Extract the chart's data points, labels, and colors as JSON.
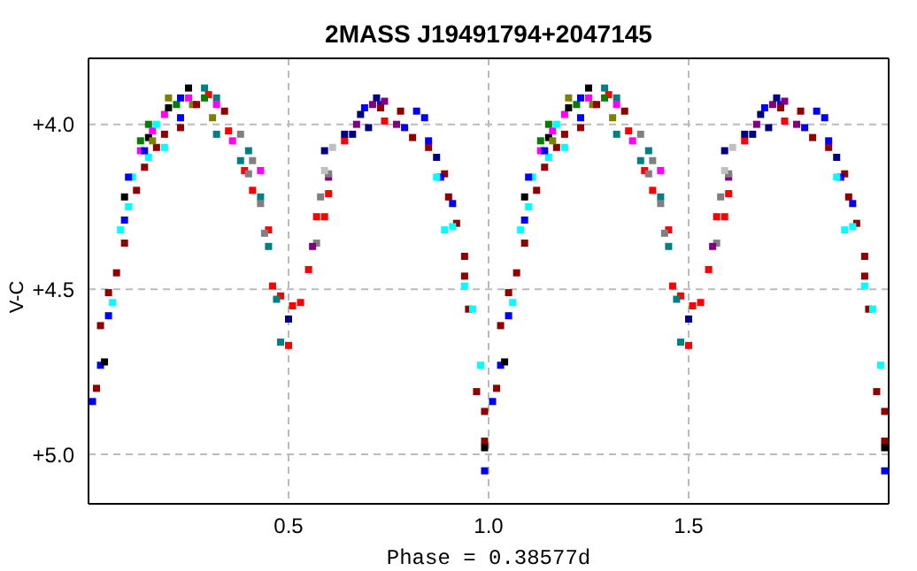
{
  "chart_data": {
    "type": "scatter",
    "title": "2MASS J19491794+2047145",
    "xlabel": "Phase = 0.38577d",
    "ylabel": "V-C",
    "xlim": [
      0,
      2
    ],
    "ylim": [
      5.15,
      3.8
    ],
    "xticks": [
      0.5,
      {
        "value": 1,
        "label": "1.0"
      },
      1.5
    ],
    "yticks": [
      {
        "value": 4,
        "label": "+4.0"
      },
      {
        "value": 4.5,
        "label": "+4.5"
      },
      {
        "value": 5,
        "label": "+5.0"
      }
    ],
    "grid": true,
    "marker": "square",
    "series": [
      {
        "x": [
          0.01,
          0.02,
          0.03,
          0.04,
          0.03,
          0.05,
          0.05,
          0.07,
          0.06,
          0.09,
          0.08,
          0.09,
          0.1,
          0.09,
          0.12,
          0.11,
          0.1,
          0.14,
          0.15,
          0.13,
          0.14,
          0.17,
          0.13,
          0.15,
          0.19,
          0.15,
          0.16,
          0.16,
          0.19,
          0.17,
          0.19,
          0.23,
          0.23,
          0.2,
          0.2,
          0.22,
          0.23,
          0.25,
          0.29,
          0.3,
          0.25,
          0.26,
          0.27,
          0.32,
          0.29,
          0.32,
          0.31,
          0.34,
          0.35,
          0.32,
          0.38,
          0.36,
          0.4,
          0.41,
          0.38,
          0.39,
          0.4,
          0.43,
          0.41,
          0.43,
          0.43,
          0.45,
          0.44,
          0.45,
          0.46,
          0.48,
          0.47,
          0.5,
          0.48,
          0.51,
          0.53,
          0.5,
          0.57,
          0.56,
          0.55,
          0.57,
          0.59,
          0.58,
          0.6,
          0.6,
          0.6,
          0.59,
          0.61,
          0.59,
          0.64,
          0.64,
          0.66,
          0.67,
          0.68,
          0.7,
          0.69,
          0.71,
          0.72,
          0.73,
          0.74,
          0.73,
          0.74,
          0.78,
          0.77,
          0.79,
          0.82,
          0.84,
          0.81,
          0.85,
          0.85,
          0.87,
          0.89,
          0.88,
          0.87,
          0.9,
          0.91,
          0.89,
          0.92,
          0.91,
          0.94,
          0.94,
          0.94,
          0.95,
          0.96,
          0.98,
          0.97,
          0.99,
          0.99,
          0.99,
          0.99
        ],
        "values": [
          4.84,
          4.8,
          4.73,
          4.72,
          4.61,
          4.58,
          4.51,
          4.45,
          4.54,
          4.36,
          4.32,
          4.29,
          4.25,
          4.22,
          4.2,
          4.16,
          4.16,
          4.13,
          4.1,
          4.08,
          4.08,
          4.07,
          4.05,
          4.04,
          4.07,
          4.0,
          4.02,
          4.05,
          4.03,
          4.0,
          3.97,
          3.98,
          4.01,
          3.95,
          3.92,
          3.94,
          3.92,
          3.89,
          3.89,
          3.91,
          3.92,
          3.94,
          3.94,
          3.92,
          3.92,
          3.94,
          3.98,
          3.96,
          4.02,
          4.03,
          4.03,
          4.05,
          4.08,
          4.11,
          4.11,
          4.14,
          4.15,
          4.14,
          4.2,
          4.22,
          4.24,
          4.32,
          4.33,
          4.37,
          4.49,
          4.52,
          4.53,
          4.67,
          4.66,
          4.55,
          4.54,
          4.59,
          4.36,
          4.37,
          4.44,
          4.28,
          4.28,
          4.22,
          4.21,
          4.16,
          4.15,
          4.14,
          4.07,
          4.08,
          4.05,
          4.03,
          4.03,
          4.0,
          3.97,
          4.01,
          3.95,
          3.94,
          3.92,
          3.94,
          3.93,
          3.95,
          3.99,
          3.96,
          4.0,
          4.01,
          3.96,
          3.98,
          4.04,
          4.05,
          4.07,
          4.1,
          4.15,
          4.16,
          4.16,
          4.22,
          4.24,
          4.32,
          4.3,
          4.31,
          4.4,
          4.46,
          4.49,
          4.56,
          4.56,
          4.73,
          4.81,
          4.87,
          4.96,
          4.98,
          5.05
        ],
        "colors": [
          "#0000ff",
          "#900000",
          "#0000ff",
          "#000000",
          "#900000",
          "#0000ff",
          "#900000",
          "#900000",
          "#00ffff",
          "#900000",
          "#00ffff",
          "#0000ff",
          "#00ffff",
          "#000000",
          "#900000",
          "#00ffff",
          "#0000ff",
          "#900000",
          "#00ffff",
          "#ff00ff",
          "#0000ff",
          "#900000",
          "#008000",
          "#000000",
          "#00ffff",
          "#008000",
          "#ff00ff",
          "#808000",
          "#900000",
          "#00ffff",
          "#ff00ff",
          "#0000ff",
          "#900000",
          "#000000",
          "#808000",
          "#008000",
          "#0000ff",
          "#000000",
          "#008080",
          "#ff0000",
          "#ff00ff",
          "#808000",
          "#900000",
          "#008080",
          "#008000",
          "#ff00ff",
          "#808000",
          "#900000",
          "#ff0000",
          "#008080",
          "#808080",
          "#ff00ff",
          "#008080",
          "#808080",
          "#008080",
          "#ff0000",
          "#808080",
          "#ff00ff",
          "#ff0000",
          "#008080",
          "#808080",
          "#ff0000",
          "#808080",
          "#008080",
          "#ff0000",
          "#ff0000",
          "#008080",
          "#ff0000",
          "#008080",
          "#ff0000",
          "#ff0000",
          "#000080",
          "#808080",
          "#800080",
          "#ff0000",
          "#ff0000",
          "#ff0000",
          "#808080",
          "#ff0000",
          "#800080",
          "#808080",
          "#c0c0c0",
          "#c0c0c0",
          "#000080",
          "#ff0000",
          "#000080",
          "#000080",
          "#800080",
          "#000080",
          "#000080",
          "#0000ff",
          "#800080",
          "#000080",
          "#0000ff",
          "#800080",
          "#900000",
          "#ff0000",
          "#900000",
          "#800080",
          "#0000ff",
          "#0000ff",
          "#0000ff",
          "#900000",
          "#0000ff",
          "#900000",
          "#000080",
          "#900000",
          "#0000ff",
          "#00ffff",
          "#900000",
          "#0000ff",
          "#00ffff",
          "#900000",
          "#00ffff",
          "#900000",
          "#900000",
          "#00ffff",
          "#900000",
          "#00ffff",
          "#00ffff",
          "#900000",
          "#900000",
          "#900000",
          "#000000",
          "#0000ff"
        ]
      },
      {
        "x": [
          1.01,
          1.02,
          1.03,
          1.04,
          1.03,
          1.05,
          1.05,
          1.07,
          1.06,
          1.09,
          1.08,
          1.09,
          1.1,
          1.09,
          1.12,
          1.11,
          1.1,
          1.14,
          1.15,
          1.13,
          1.14,
          1.17,
          1.13,
          1.15,
          1.19,
          1.15,
          1.16,
          1.16,
          1.19,
          1.17,
          1.19,
          1.23,
          1.23,
          1.2,
          1.2,
          1.22,
          1.23,
          1.25,
          1.29,
          1.3,
          1.25,
          1.26,
          1.27,
          1.32,
          1.29,
          1.32,
          1.31,
          1.34,
          1.35,
          1.32,
          1.38,
          1.36,
          1.4,
          1.41,
          1.38,
          1.39,
          1.4,
          1.43,
          1.41,
          1.43,
          1.43,
          1.45,
          1.44,
          1.45,
          1.46,
          1.48,
          1.47,
          1.5,
          1.48,
          1.51,
          1.53,
          1.5,
          1.57,
          1.56,
          1.55,
          1.57,
          1.59,
          1.58,
          1.6,
          1.6,
          1.6,
          1.59,
          1.61,
          1.59,
          1.64,
          1.64,
          1.66,
          1.67,
          1.68,
          1.7,
          1.69,
          1.71,
          1.72,
          1.73,
          1.74,
          1.73,
          1.74,
          1.78,
          1.77,
          1.79,
          1.82,
          1.84,
          1.81,
          1.85,
          1.85,
          1.87,
          1.89,
          1.88,
          1.87,
          1.9,
          1.91,
          1.89,
          1.92,
          1.91,
          1.94,
          1.94,
          1.94,
          1.95,
          1.96,
          1.98,
          1.97,
          1.99,
          1.99,
          1.99,
          1.99
        ],
        "values": [
          4.84,
          4.8,
          4.73,
          4.72,
          4.61,
          4.58,
          4.51,
          4.45,
          4.54,
          4.36,
          4.32,
          4.29,
          4.25,
          4.22,
          4.2,
          4.16,
          4.16,
          4.13,
          4.1,
          4.08,
          4.08,
          4.07,
          4.05,
          4.04,
          4.07,
          4.0,
          4.02,
          4.05,
          4.03,
          4.0,
          3.97,
          3.98,
          4.01,
          3.95,
          3.92,
          3.94,
          3.92,
          3.89,
          3.89,
          3.91,
          3.92,
          3.94,
          3.94,
          3.92,
          3.92,
          3.94,
          3.98,
          3.96,
          4.02,
          4.03,
          4.03,
          4.05,
          4.08,
          4.11,
          4.11,
          4.14,
          4.15,
          4.14,
          4.2,
          4.22,
          4.24,
          4.32,
          4.33,
          4.37,
          4.49,
          4.52,
          4.53,
          4.67,
          4.66,
          4.55,
          4.54,
          4.59,
          4.36,
          4.37,
          4.44,
          4.28,
          4.28,
          4.22,
          4.21,
          4.16,
          4.15,
          4.14,
          4.07,
          4.08,
          4.05,
          4.03,
          4.03,
          4.0,
          3.97,
          4.01,
          3.95,
          3.94,
          3.92,
          3.94,
          3.93,
          3.95,
          3.99,
          3.96,
          4.0,
          4.01,
          3.96,
          3.98,
          4.04,
          4.05,
          4.07,
          4.1,
          4.15,
          4.16,
          4.16,
          4.22,
          4.24,
          4.32,
          4.3,
          4.31,
          4.4,
          4.46,
          4.49,
          4.56,
          4.56,
          4.73,
          4.81,
          4.87,
          4.96,
          4.98,
          5.05
        ],
        "colors": [
          "#0000ff",
          "#900000",
          "#0000ff",
          "#000000",
          "#900000",
          "#0000ff",
          "#900000",
          "#900000",
          "#00ffff",
          "#900000",
          "#00ffff",
          "#0000ff",
          "#00ffff",
          "#000000",
          "#900000",
          "#00ffff",
          "#0000ff",
          "#900000",
          "#00ffff",
          "#ff00ff",
          "#0000ff",
          "#900000",
          "#008000",
          "#000000",
          "#00ffff",
          "#008000",
          "#ff00ff",
          "#808000",
          "#900000",
          "#00ffff",
          "#ff00ff",
          "#0000ff",
          "#900000",
          "#000000",
          "#808000",
          "#008000",
          "#0000ff",
          "#000000",
          "#008080",
          "#ff0000",
          "#ff00ff",
          "#808000",
          "#900000",
          "#008080",
          "#008000",
          "#ff00ff",
          "#808000",
          "#900000",
          "#ff0000",
          "#008080",
          "#808080",
          "#ff00ff",
          "#008080",
          "#808080",
          "#008080",
          "#ff0000",
          "#808080",
          "#ff00ff",
          "#ff0000",
          "#008080",
          "#808080",
          "#ff0000",
          "#808080",
          "#008080",
          "#ff0000",
          "#ff0000",
          "#008080",
          "#ff0000",
          "#008080",
          "#ff0000",
          "#ff0000",
          "#000080",
          "#808080",
          "#800080",
          "#ff0000",
          "#ff0000",
          "#ff0000",
          "#808080",
          "#ff0000",
          "#800080",
          "#808080",
          "#c0c0c0",
          "#c0c0c0",
          "#000080",
          "#ff0000",
          "#000080",
          "#000080",
          "#800080",
          "#000080",
          "#000080",
          "#0000ff",
          "#800080",
          "#000080",
          "#0000ff",
          "#800080",
          "#900000",
          "#ff0000",
          "#900000",
          "#800080",
          "#0000ff",
          "#0000ff",
          "#0000ff",
          "#900000",
          "#0000ff",
          "#900000",
          "#000080",
          "#900000",
          "#0000ff",
          "#00ffff",
          "#900000",
          "#0000ff",
          "#00ffff",
          "#900000",
          "#00ffff",
          "#900000",
          "#900000",
          "#00ffff",
          "#900000",
          "#00ffff",
          "#00ffff",
          "#900000",
          "#900000",
          "#900000",
          "#000000",
          "#0000ff"
        ]
      }
    ]
  }
}
